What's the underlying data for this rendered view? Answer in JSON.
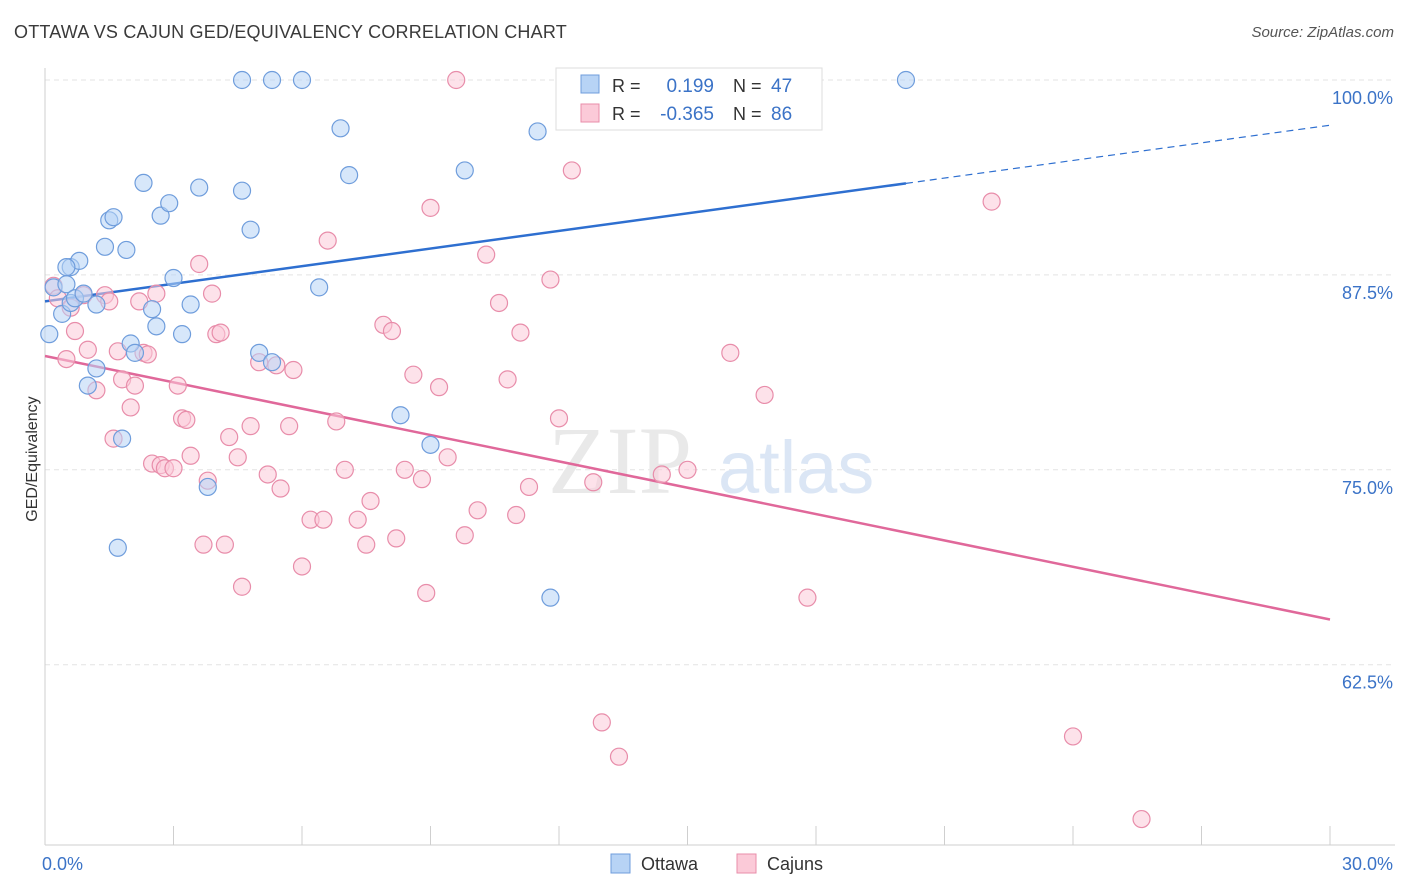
{
  "title": "OTTAWA VS CAJUN GED/EQUIVALENCY CORRELATION CHART",
  "source": "Source: ZipAtlas.com",
  "colors": {
    "ottawa_fill": "#b7d3f5",
    "ottawa_stroke": "#6f9ddc",
    "ottawa_line": "#2e6fd0",
    "cajun_fill": "#fbcad8",
    "cajun_stroke": "#e88daa",
    "cajun_line": "#e0689a",
    "tick_label": "#3b73c7",
    "grid": "#e3e3e3"
  },
  "watermark": {
    "part1": "ZIP",
    "part2": "atlas"
  },
  "legend_top": {
    "rows": [
      {
        "r_label": "R =",
        "r_value": "0.199",
        "n_label": "N =",
        "n_value": "47"
      },
      {
        "r_label": "R =",
        "r_value": "-0.365",
        "n_label": "N =",
        "n_value": "86"
      }
    ]
  },
  "chart_data": {
    "type": "scatter",
    "title": "OTTAWA VS CAJUN GED/EQUIVALENCY CORRELATION CHART",
    "xlabel": "",
    "ylabel": "GED/Equivalency",
    "xlim": [
      0,
      30
    ],
    "ylim": [
      51,
      101
    ],
    "x_tick_labels": [
      {
        "value": 0,
        "label": "0.0%"
      },
      {
        "value": 30,
        "label": "30.0%"
      }
    ],
    "y_tick_labels": [
      {
        "value": 100,
        "label": "100.0%"
      },
      {
        "value": 87.5,
        "label": "87.5%"
      },
      {
        "value": 75,
        "label": "75.0%"
      },
      {
        "value": 62.5,
        "label": "62.5%"
      }
    ],
    "grid": true,
    "legend": "bottom-center",
    "series": [
      {
        "name": "Ottawa",
        "points": [
          [
            0.1,
            83.7
          ],
          [
            0.2,
            86.7
          ],
          [
            0.4,
            85.0
          ],
          [
            0.5,
            86.9
          ],
          [
            0.6,
            88.0
          ],
          [
            0.6,
            85.7
          ],
          [
            0.7,
            86.0
          ],
          [
            0.8,
            88.4
          ],
          [
            0.9,
            86.3
          ],
          [
            1.0,
            80.4
          ],
          [
            1.2,
            81.5
          ],
          [
            1.2,
            85.6
          ],
          [
            1.4,
            89.3
          ],
          [
            1.5,
            91.0
          ],
          [
            1.6,
            91.2
          ],
          [
            1.7,
            70.0
          ],
          [
            1.8,
            77.0
          ],
          [
            1.9,
            89.1
          ],
          [
            2.0,
            83.1
          ],
          [
            2.1,
            82.5
          ],
          [
            2.3,
            93.4
          ],
          [
            2.5,
            85.3
          ],
          [
            2.6,
            84.2
          ],
          [
            2.7,
            91.3
          ],
          [
            2.9,
            92.1
          ],
          [
            3.0,
            87.3
          ],
          [
            3.2,
            83.7
          ],
          [
            3.4,
            85.6
          ],
          [
            3.6,
            93.1
          ],
          [
            3.8,
            73.9
          ],
          [
            4.6,
            100.0
          ],
          [
            4.6,
            92.9
          ],
          [
            4.8,
            90.4
          ],
          [
            5.0,
            82.5
          ],
          [
            5.3,
            100.0
          ],
          [
            5.3,
            81.9
          ],
          [
            6.0,
            100.0
          ],
          [
            6.4,
            86.7
          ],
          [
            6.9,
            96.9
          ],
          [
            7.1,
            93.9
          ],
          [
            8.3,
            78.5
          ],
          [
            9.0,
            76.6
          ],
          [
            9.8,
            94.2
          ],
          [
            11.5,
            96.7
          ],
          [
            11.8,
            66.8
          ],
          [
            20.1,
            100.0
          ],
          [
            0.5,
            88.0
          ]
        ]
      },
      {
        "name": "Cajuns",
        "points": [
          [
            0.2,
            86.8
          ],
          [
            0.3,
            86.0
          ],
          [
            0.5,
            82.1
          ],
          [
            0.6,
            85.4
          ],
          [
            0.7,
            83.9
          ],
          [
            0.9,
            86.2
          ],
          [
            1.0,
            82.7
          ],
          [
            1.2,
            80.1
          ],
          [
            1.4,
            86.2
          ],
          [
            1.5,
            85.8
          ],
          [
            1.6,
            77.0
          ],
          [
            1.7,
            82.6
          ],
          [
            1.8,
            80.8
          ],
          [
            2.0,
            79.0
          ],
          [
            2.1,
            80.4
          ],
          [
            2.2,
            85.8
          ],
          [
            2.3,
            82.5
          ],
          [
            2.4,
            82.4
          ],
          [
            2.5,
            75.4
          ],
          [
            2.6,
            86.3
          ],
          [
            2.7,
            75.3
          ],
          [
            2.8,
            75.1
          ],
          [
            3.0,
            75.1
          ],
          [
            3.1,
            80.4
          ],
          [
            3.2,
            78.3
          ],
          [
            3.3,
            78.2
          ],
          [
            3.4,
            75.9
          ],
          [
            3.6,
            88.2
          ],
          [
            3.7,
            70.2
          ],
          [
            3.8,
            74.3
          ],
          [
            3.9,
            86.3
          ],
          [
            4.0,
            83.7
          ],
          [
            4.1,
            83.8
          ],
          [
            4.2,
            70.2
          ],
          [
            4.3,
            77.1
          ],
          [
            4.5,
            75.8
          ],
          [
            4.6,
            67.5
          ],
          [
            4.8,
            77.8
          ],
          [
            5.0,
            81.9
          ],
          [
            5.2,
            74.7
          ],
          [
            5.4,
            81.7
          ],
          [
            5.5,
            73.8
          ],
          [
            5.7,
            77.8
          ],
          [
            5.8,
            81.4
          ],
          [
            6.0,
            68.8
          ],
          [
            6.2,
            71.8
          ],
          [
            6.5,
            71.8
          ],
          [
            6.6,
            89.7
          ],
          [
            6.8,
            78.1
          ],
          [
            7.0,
            75.0
          ],
          [
            7.3,
            71.8
          ],
          [
            7.5,
            70.2
          ],
          [
            7.6,
            73.0
          ],
          [
            7.9,
            84.3
          ],
          [
            8.1,
            83.9
          ],
          [
            8.2,
            70.6
          ],
          [
            8.4,
            75.0
          ],
          [
            8.6,
            81.1
          ],
          [
            8.8,
            74.4
          ],
          [
            8.9,
            67.1
          ],
          [
            9.0,
            91.8
          ],
          [
            9.2,
            80.3
          ],
          [
            9.4,
            75.8
          ],
          [
            9.6,
            100.0
          ],
          [
            9.8,
            70.8
          ],
          [
            10.1,
            72.4
          ],
          [
            10.3,
            88.8
          ],
          [
            10.6,
            85.7
          ],
          [
            10.8,
            80.8
          ],
          [
            11.0,
            72.1
          ],
          [
            11.1,
            83.8
          ],
          [
            11.3,
            73.9
          ],
          [
            11.8,
            87.2
          ],
          [
            12.0,
            78.3
          ],
          [
            12.3,
            94.2
          ],
          [
            12.8,
            74.2
          ],
          [
            13.0,
            58.8
          ],
          [
            13.4,
            56.6
          ],
          [
            14.4,
            74.7
          ],
          [
            15.0,
            75.0
          ],
          [
            16.0,
            82.5
          ],
          [
            16.8,
            79.8
          ],
          [
            17.8,
            66.8
          ],
          [
            22.1,
            92.2
          ],
          [
            24.0,
            57.9
          ],
          [
            25.6,
            52.6
          ]
        ]
      }
    ],
    "trendlines": [
      {
        "series": "Ottawa",
        "from": [
          0,
          85.8
        ],
        "to": [
          30,
          97.1
        ],
        "dashed_after_x": 20.1
      },
      {
        "series": "Cajuns",
        "from": [
          0,
          82.3
        ],
        "to": [
          30,
          65.4
        ]
      }
    ]
  }
}
